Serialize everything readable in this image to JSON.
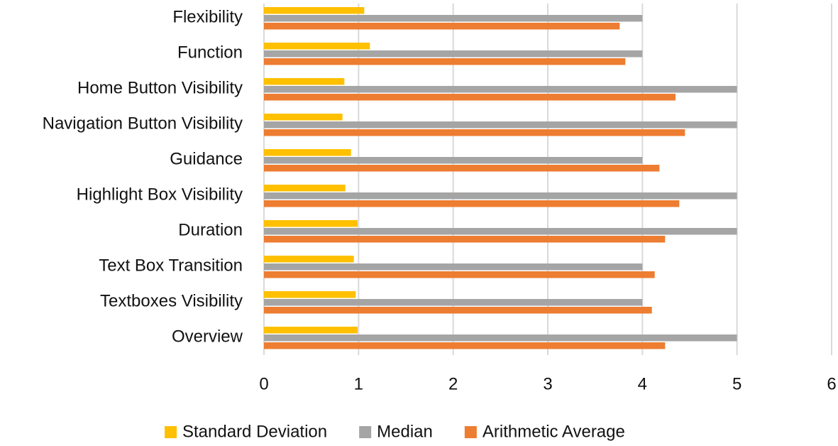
{
  "chart_data": {
    "type": "hbar",
    "categories": [
      "Flexibility",
      "Function",
      "Home Button Visibility",
      "Navigation Button Visibility",
      "Guidance",
      "Highlight Box Visibility",
      "Duration",
      "Text Box Transition",
      "Textboxes Visibility",
      "Overview"
    ],
    "series": [
      {
        "name": "Standard Deviation",
        "color": "#FFC000",
        "values": [
          1.06,
          1.12,
          0.85,
          0.83,
          0.92,
          0.86,
          0.99,
          0.95,
          0.97,
          0.99
        ]
      },
      {
        "name": "Median",
        "color": "#A5A5A5",
        "values": [
          4,
          4,
          5,
          5,
          4,
          5,
          5,
          4,
          4,
          5
        ]
      },
      {
        "name": "Arithmetic Average",
        "color": "#ED7D31",
        "values": [
          3.76,
          3.82,
          4.35,
          4.45,
          4.18,
          4.39,
          4.24,
          4.13,
          4.1,
          4.24
        ]
      }
    ],
    "xlim": [
      0,
      6
    ],
    "xticks": [
      0,
      1,
      2,
      3,
      4,
      5,
      6
    ],
    "grid": true,
    "legend": "bottom"
  }
}
